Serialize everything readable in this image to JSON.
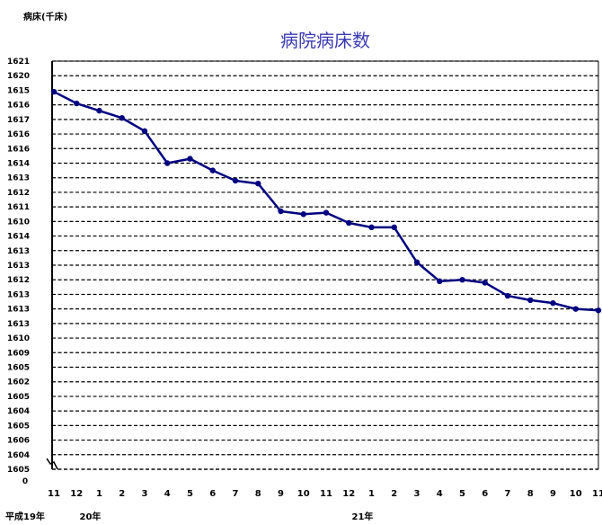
{
  "chart_data": {
    "type": "line",
    "title": "病院病床数",
    "ylabel": "病床(千床)",
    "ylim": [
      1609,
      1637
    ],
    "y_ticks": [
      1609,
      1610,
      1611,
      1612,
      1613,
      1614,
      1615,
      1616,
      1617,
      1618,
      1619,
      1620,
      1621,
      1622,
      1623,
      1624,
      1625,
      1626,
      1627,
      1628,
      1629,
      1630,
      1631,
      1632,
      1633,
      1634,
      1635,
      1636,
      1637
    ],
    "y_tick_labels": [
      "1605",
      "1604",
      "1606",
      "1605",
      "1604",
      "1605",
      "1602",
      "1605",
      "1609",
      "1610",
      "1613",
      "1613",
      "1613",
      "1612",
      "1613",
      "1613",
      "1614",
      "1610",
      "1611",
      "1612",
      "1613",
      "1614",
      "1616",
      "1616",
      "1617",
      "1616",
      "1615",
      "1620",
      "1621"
    ],
    "zero_label": "0",
    "categories": [
      "11",
      "12",
      "1",
      "2",
      "3",
      "4",
      "5",
      "6",
      "7",
      "8",
      "9",
      "10",
      "11",
      "12",
      "1",
      "2",
      "3",
      "4",
      "5",
      "6",
      "7",
      "8",
      "9",
      "10",
      "11"
    ],
    "year_labels": [
      {
        "text": "平成19年",
        "index": 0
      },
      {
        "text": "20年",
        "index": 2
      },
      {
        "text": "21年",
        "index": 14
      }
    ],
    "series": [
      {
        "values": [
          1634.9,
          1634.1,
          1633.6,
          1633.1,
          1632.2,
          1630.0,
          1630.3,
          1629.5,
          1628.8,
          1628.6,
          1626.7,
          1626.5,
          1626.6,
          1625.9,
          1625.6,
          1625.6,
          1623.2,
          1621.9,
          1622.0,
          1621.8,
          1620.9,
          1620.6,
          1620.4,
          1620.0,
          1619.9
        ],
        "color": "#000080"
      }
    ],
    "grid": true,
    "legend": "none"
  }
}
